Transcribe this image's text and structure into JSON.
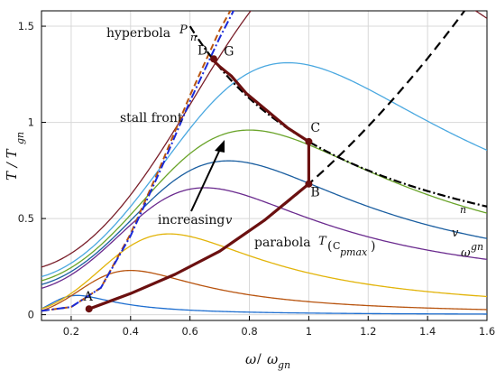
{
  "chart_data": {
    "type": "line",
    "title": "",
    "xlabel": "ω / ω_gn",
    "ylabel": "T / T_gn",
    "xlim": [
      0.1,
      1.6
    ],
    "ylim": [
      -0.03,
      1.58
    ],
    "x_ticks": [
      0.2,
      0.4,
      0.6,
      0.8,
      1,
      1.2,
      1.4,
      1.6
    ],
    "y_ticks": [
      0,
      0.5,
      1,
      1.5
    ],
    "x_tick_labels": [
      "0.2",
      "0.4",
      "0.6",
      "0.8",
      "1",
      "1.2",
      "1.4",
      "1.6"
    ],
    "y_tick_labels": [
      "0",
      "0.5",
      "1",
      "1.5"
    ],
    "grid": true,
    "torque_curves": [
      {
        "color": "#1f6fd0",
        "a": 0.0,
        "b": 0.22,
        "peak": 0.1
      },
      {
        "color": "#b8540f",
        "a": 0.0,
        "b": 0.4,
        "peak": 0.23
      },
      {
        "color": "#e2b40a",
        "a": 0.01,
        "b": 0.53,
        "peak": 0.42
      },
      {
        "color": "#6a2a8e",
        "a": 0.12,
        "b": 0.65,
        "peak": 0.66
      },
      {
        "color": "#1a5ea0",
        "a": 0.14,
        "b": 0.73,
        "peak": 0.8
      },
      {
        "color": "#6aa42a",
        "a": 0.16,
        "b": 0.8,
        "peak": 0.96
      },
      {
        "color": "#4aa8e0",
        "a": 0.18,
        "b": 0.93,
        "peak": 1.31
      },
      {
        "color": "#7a1f2a",
        "a": 0.23,
        "b": 1.12,
        "peak": 1.9
      }
    ],
    "stall_curves": [
      {
        "color": "#b8540f",
        "style": "dash",
        "x": [
          0.1,
          0.2,
          0.3,
          0.4,
          0.5,
          0.6,
          0.7,
          0.75
        ],
        "y": [
          0.02,
          0.04,
          0.14,
          0.42,
          0.77,
          1.14,
          1.48,
          1.62
        ]
      },
      {
        "color": "#1a2ad8",
        "style": "dashdot",
        "x": [
          0.1,
          0.2,
          0.3,
          0.4,
          0.5,
          0.6,
          0.7,
          0.76
        ],
        "y": [
          0.02,
          0.04,
          0.14,
          0.41,
          0.75,
          1.11,
          1.44,
          1.62
        ]
      }
    ],
    "hyperbola_curve": {
      "k": 0.9,
      "x_min": 0.6,
      "x_max": 1.6
    },
    "parabola_curve": {
      "k": 0.68,
      "x_min": 0.72,
      "x_max": 1.6
    },
    "operating_path": {
      "color": "#6b1010",
      "x": [
        0.26,
        0.4,
        0.55,
        0.7,
        0.85,
        1.0,
        1.0,
        0.93,
        0.86,
        0.79,
        0.74,
        0.7,
        0.68
      ],
      "y": [
        0.03,
        0.11,
        0.21,
        0.33,
        0.49,
        0.68,
        0.9,
        0.97,
        1.06,
        1.15,
        1.24,
        1.29,
        1.32
      ]
    },
    "points": [
      {
        "label": "A",
        "x": 0.26,
        "y": 0.03
      },
      {
        "label": "B",
        "x": 1.0,
        "y": 0.68
      },
      {
        "label": "C",
        "x": 1.0,
        "y": 0.9
      },
      {
        "label": "D",
        "x": 0.68,
        "y": 1.33
      },
      {
        "label": "G",
        "x": 0.69,
        "y": 1.33
      }
    ],
    "annotations": {
      "hyperbola": "hyperbola",
      "stall_front": "stall front",
      "increasing": "increasing",
      "increasing_var": "v",
      "parabola": "parabola",
      "tcp": "T",
      "tcp_paren_open": "(",
      "tcp_sub": "C",
      "tcp_sub2": "pmax",
      "tcp_paren_close": ")",
      "pn": "P",
      "pn_sub": "n",
      "right_n": "n",
      "right_v": "v",
      "right_w": "ω",
      "right_w_sup": "gn",
      "xlabel_main": "ω",
      "xlabel_slash": "/",
      "xlabel_omega": "ω",
      "xlabel_sub": "gn",
      "ylabel_main": "T / T",
      "ylabel_sub": "gn"
    }
  }
}
